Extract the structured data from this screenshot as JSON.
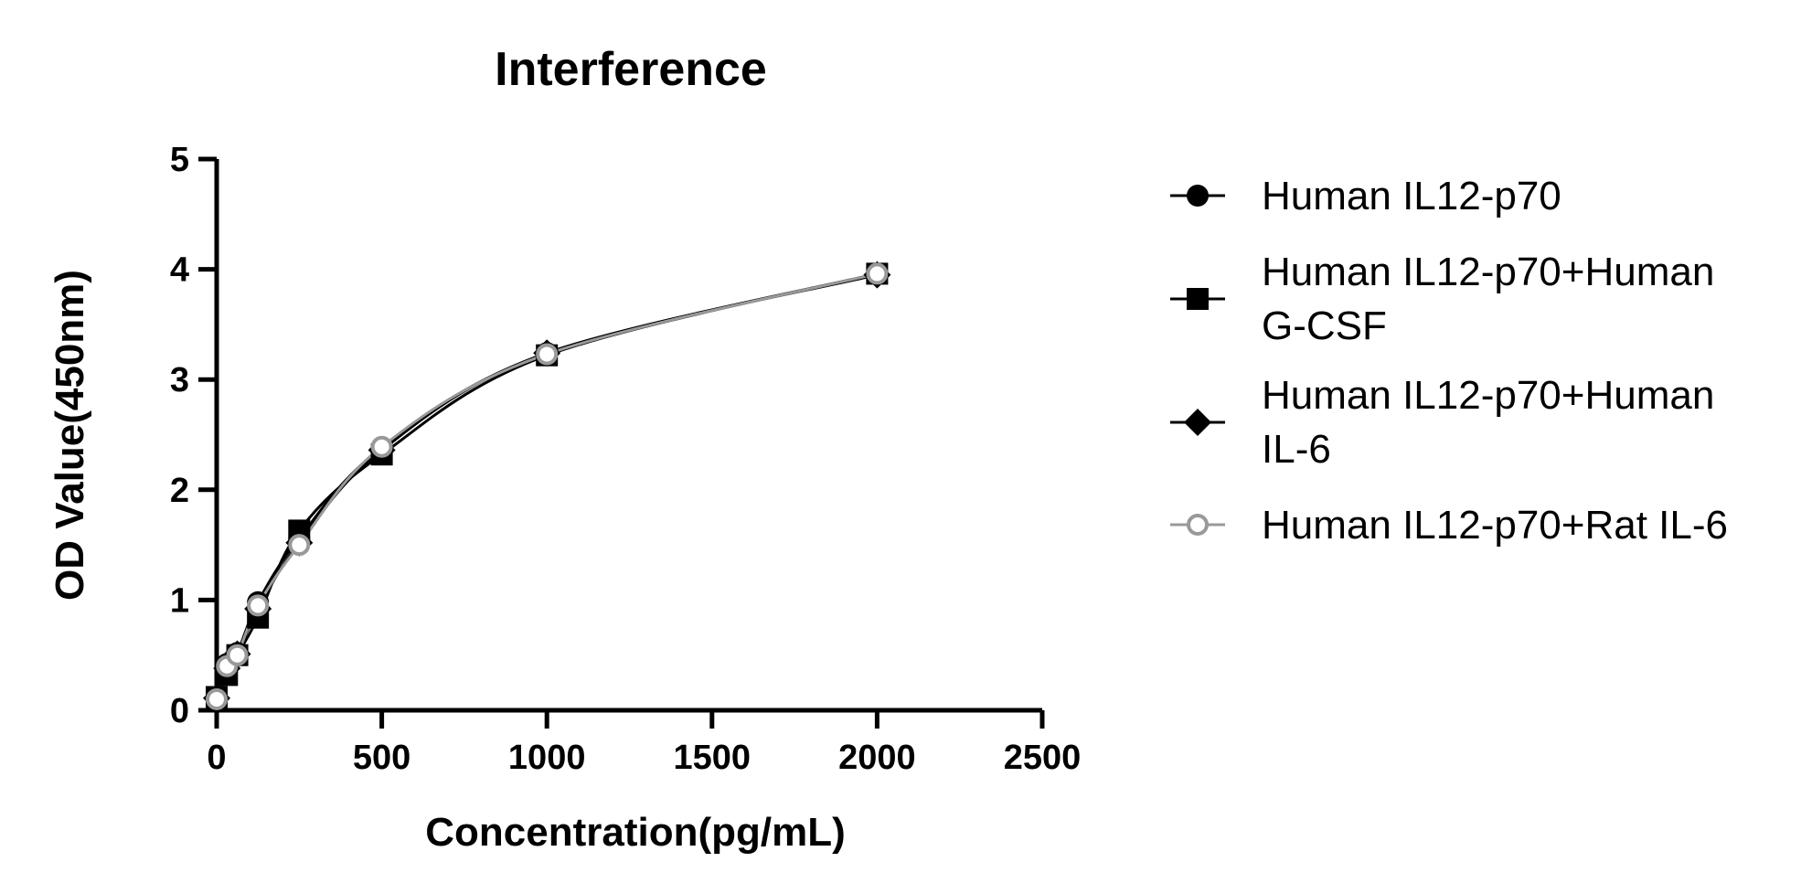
{
  "chart_data": {
    "type": "scatter",
    "title": "Interference",
    "xlabel": "Concentration(pg/mL)",
    "ylabel": "OD Value(450nm)",
    "xlim": [
      0,
      2500
    ],
    "ylim": [
      0,
      5
    ],
    "xticks": [
      0,
      500,
      1000,
      1500,
      2000,
      2500
    ],
    "yticks": [
      0,
      1,
      2,
      3,
      4,
      5
    ],
    "grid": false,
    "legend_position": "right",
    "series": [
      {
        "name": "Human IL12-p70",
        "marker": "circle",
        "color": "#000000",
        "x": [
          0,
          31.25,
          62.5,
          125,
          250,
          500,
          1000,
          2000
        ],
        "y": [
          0.1,
          0.42,
          0.52,
          0.98,
          1.56,
          2.38,
          3.24,
          3.96
        ]
      },
      {
        "name": "Human IL12-p70+Human G-CSF",
        "legend_lines": [
          "Human IL12-p70+Human",
          "G-CSF"
        ],
        "marker": "square",
        "color": "#000000",
        "x": [
          0,
          31.25,
          62.5,
          125,
          250,
          500,
          1000,
          2000
        ],
        "y": [
          0.12,
          0.32,
          0.5,
          0.84,
          1.63,
          2.32,
          3.22,
          3.96
        ]
      },
      {
        "name": "Human IL12-p70+Human IL-6",
        "legend_lines": [
          "Human IL12-p70+Human",
          "IL-6"
        ],
        "marker": "diamond",
        "color": "#000000",
        "x": [
          0,
          31.25,
          62.5,
          125,
          250,
          500,
          1000,
          2000
        ],
        "y": [
          0.11,
          0.38,
          0.51,
          0.92,
          1.52,
          2.36,
          3.24,
          3.95
        ]
      },
      {
        "name": "Human IL12-p70+Rat IL-6",
        "marker": "open-circle",
        "color": "#999999",
        "x": [
          0,
          31.25,
          62.5,
          125,
          250,
          500,
          1000,
          2000
        ],
        "y": [
          0.1,
          0.4,
          0.5,
          0.95,
          1.5,
          2.39,
          3.23,
          3.96
        ]
      }
    ]
  }
}
